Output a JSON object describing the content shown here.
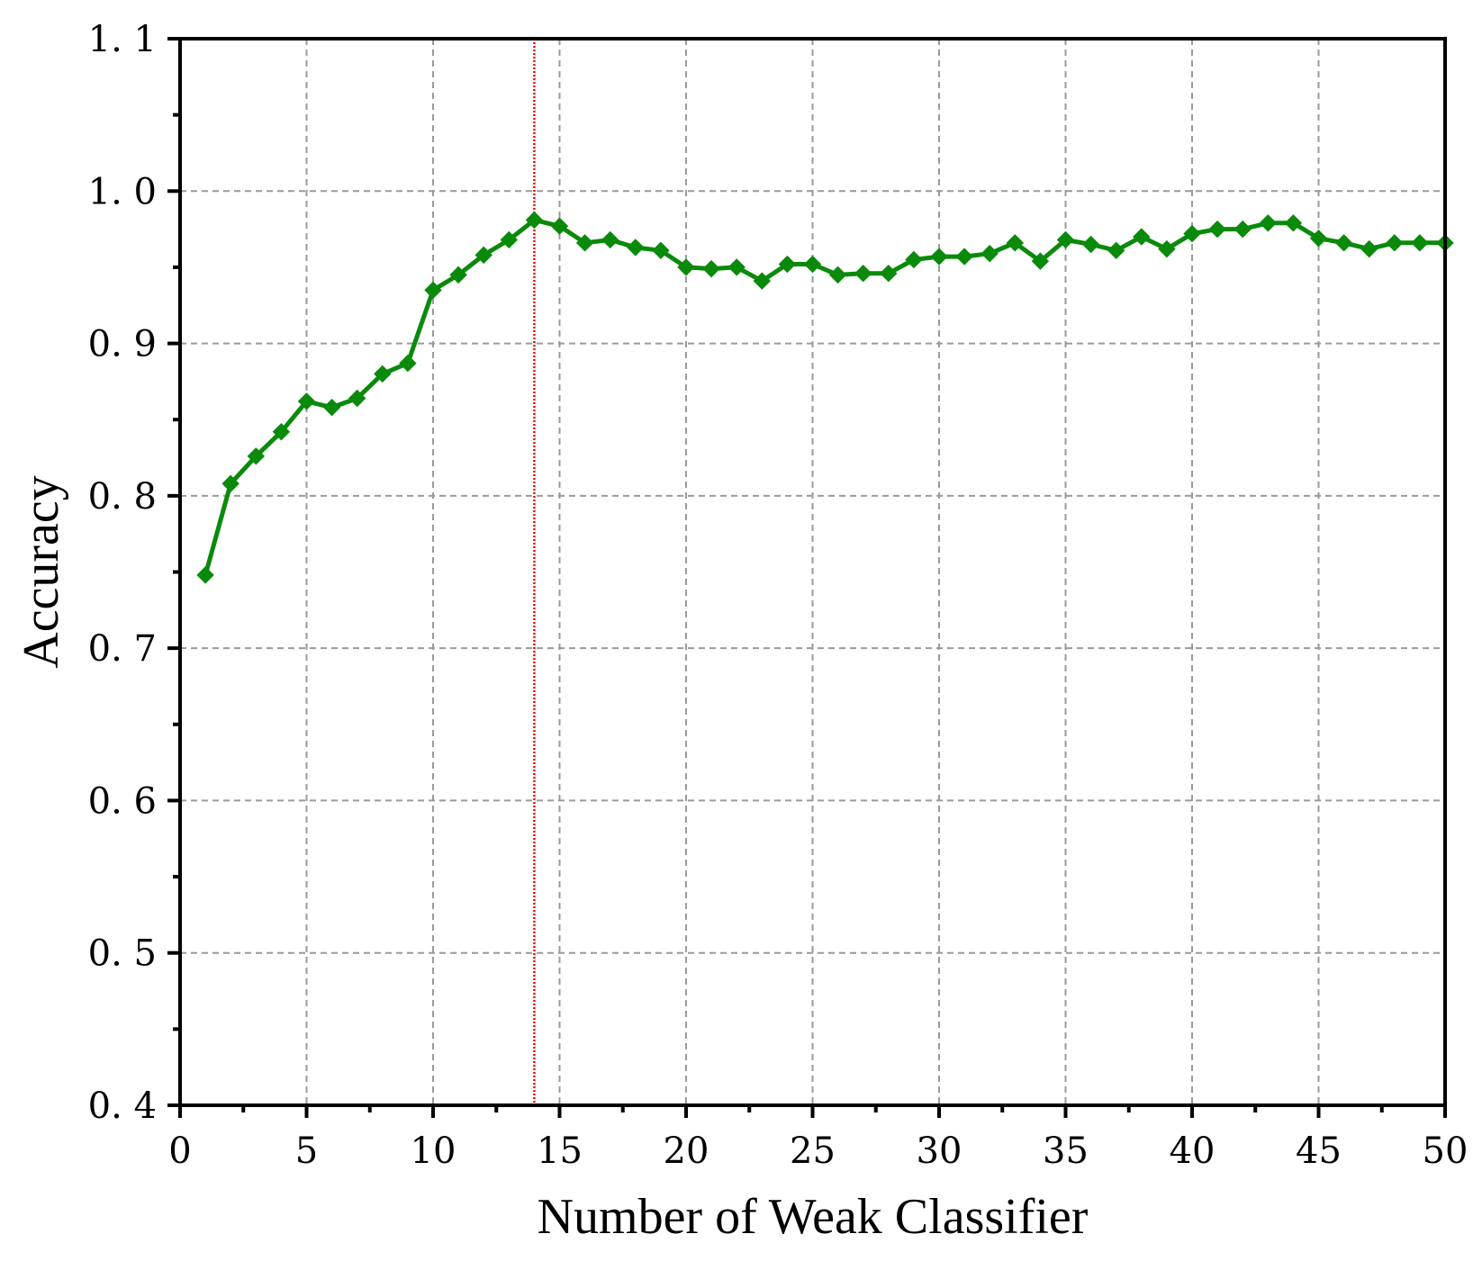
{
  "chart_data": {
    "type": "line",
    "xlabel": "Number of Weak Classifier",
    "ylabel": "Accuracy",
    "xlim": [
      0,
      50
    ],
    "ylim": [
      0.4,
      1.1
    ],
    "x_ticks": [
      0,
      5,
      10,
      15,
      20,
      25,
      30,
      35,
      40,
      45,
      50
    ],
    "x_tick_labels": [
      "0",
      "5",
      "10",
      "15",
      "20",
      "25",
      "30",
      "35",
      "40",
      "45",
      "50"
    ],
    "y_ticks": [
      0.4,
      0.5,
      0.6,
      0.7,
      0.8,
      0.9,
      1.0,
      1.1
    ],
    "y_tick_labels": [
      "0. 4",
      "0. 5",
      "0. 6",
      "0. 7",
      "0. 8",
      "0. 9",
      "1. 0",
      "1. 1"
    ],
    "grid": true,
    "vertical_reference_line": {
      "x": 14,
      "color": "#ff0000",
      "style": "dotted"
    },
    "series": [
      {
        "color": "#0a8a0a",
        "marker": "diamond",
        "x": [
          1,
          2,
          3,
          4,
          5,
          6,
          7,
          8,
          9,
          10,
          11,
          12,
          13,
          14,
          15,
          16,
          17,
          18,
          19,
          20,
          21,
          22,
          23,
          24,
          25,
          26,
          27,
          28,
          29,
          30,
          31,
          32,
          33,
          34,
          35,
          36,
          37,
          38,
          39,
          40,
          41,
          42,
          43,
          44,
          45,
          46,
          47,
          48,
          49,
          50
        ],
        "y": [
          0.748,
          0.808,
          0.826,
          0.842,
          0.862,
          0.858,
          0.864,
          0.88,
          0.887,
          0.935,
          0.945,
          0.958,
          0.968,
          0.981,
          0.977,
          0.966,
          0.968,
          0.963,
          0.961,
          0.95,
          0.949,
          0.95,
          0.941,
          0.952,
          0.952,
          0.945,
          0.946,
          0.946,
          0.955,
          0.957,
          0.957,
          0.959,
          0.966,
          0.954,
          0.968,
          0.965,
          0.961,
          0.97,
          0.962,
          0.972,
          0.975,
          0.975,
          0.979,
          0.979,
          0.969,
          0.966,
          0.962,
          0.966,
          0.966,
          0.966
        ]
      }
    ]
  }
}
